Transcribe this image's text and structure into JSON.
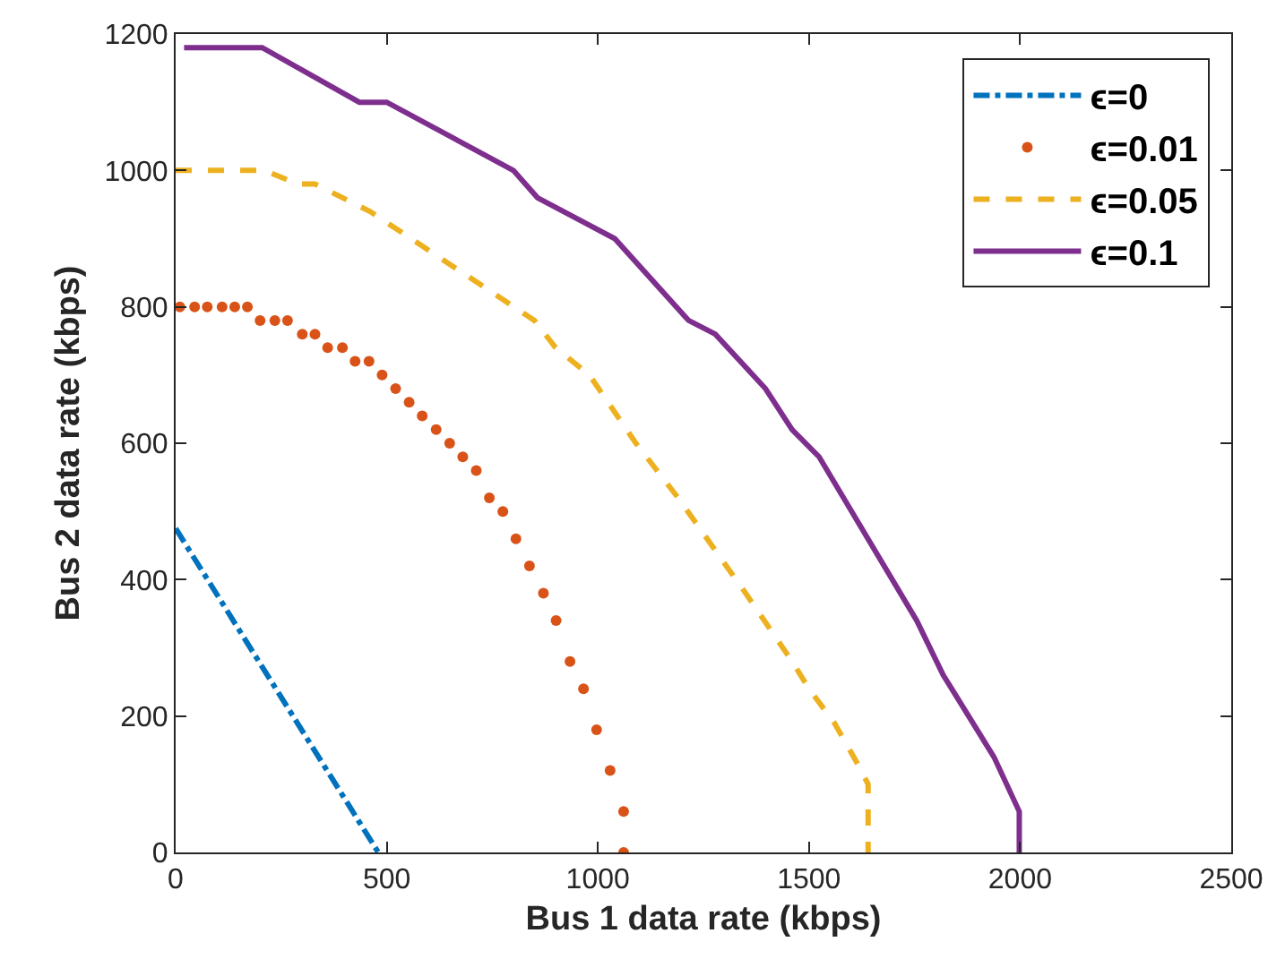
{
  "chart_data": {
    "type": "line",
    "xlabel": "Bus 1 data rate (kbps)",
    "ylabel": "Bus 2 data rate (kbps)",
    "xlim": [
      0,
      2500
    ],
    "xticks": [
      0,
      500,
      1000,
      1500,
      2000,
      2500
    ],
    "ylim": [
      0,
      1200
    ],
    "yticks": [
      0,
      200,
      400,
      600,
      800,
      1000,
      1200
    ],
    "grid": false,
    "legend": "top right",
    "series": [
      {
        "name": "ϵ=0",
        "color": "#0072bd",
        "line_style": "dashdot",
        "marker": "none",
        "x": [
          0,
          480
        ],
        "values": [
          475,
          0
        ]
      },
      {
        "name": "ϵ=0.01",
        "type": "scatter",
        "color": "#d95319",
        "marker": "circle",
        "x": [
          10,
          45,
          75,
          110,
          140,
          170,
          200,
          235,
          265,
          300,
          330,
          360,
          395,
          425,
          458,
          489,
          521,
          553,
          584,
          617,
          649,
          680,
          712,
          743,
          775,
          806,
          838,
          871,
          901,
          934,
          966,
          997,
          1029,
          1061,
          1061
        ],
        "values": [
          800,
          800,
          800,
          800,
          800,
          800,
          780,
          780,
          780,
          760,
          760,
          740,
          740,
          720,
          720,
          700,
          680,
          660,
          640,
          620,
          600,
          580,
          560,
          520,
          500,
          460,
          420,
          380,
          340,
          280,
          240,
          180,
          120,
          60,
          0
        ]
      },
      {
        "name": "ϵ=0.05",
        "color": "#edb120",
        "line_style": "dashed",
        "marker": "none",
        "x": [
          0,
          210,
          290,
          330,
          460,
          850,
          900,
          980,
          1090,
          1190,
          1350,
          1460,
          1500,
          1560,
          1615,
          1640,
          1640
        ],
        "values": [
          1000,
          1000,
          980,
          980,
          940,
          780,
          740,
          700,
          600,
          520,
          380,
          280,
          240,
          190,
          130,
          100,
          0
        ]
      },
      {
        "name": "ϵ=0.1",
        "color": "#7e2f8e",
        "line_style": "solid",
        "marker": "none",
        "x": [
          20,
          205,
          435,
          500,
          800,
          857,
          1040,
          1215,
          1278,
          1397,
          1460,
          1524,
          1755,
          1818,
          1938,
          1998,
          1998
        ],
        "values": [
          1180,
          1180,
          1100,
          1100,
          1000,
          960,
          900,
          780,
          760,
          680,
          620,
          580,
          340,
          260,
          140,
          60,
          0
        ]
      }
    ]
  }
}
